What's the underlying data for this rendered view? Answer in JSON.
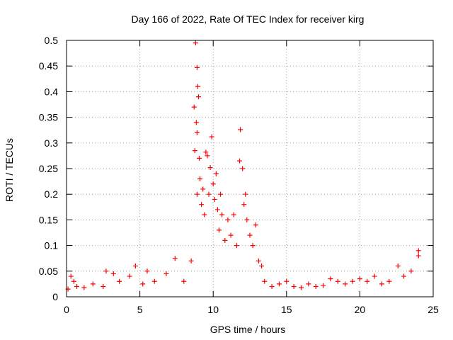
{
  "chart_data": {
    "type": "scatter",
    "title": "Day 166 of 2022, Rate Of TEC Index for receiver kirg",
    "xlabel": "GPS time / hours",
    "ylabel": "ROTI / TECUs",
    "xlim": [
      0,
      25
    ],
    "ylim": [
      0,
      0.5
    ],
    "x_ticks": [
      0,
      5,
      10,
      15,
      20,
      25
    ],
    "y_ticks": [
      0,
      0.05,
      0.1,
      0.15,
      0.2,
      0.25,
      0.3,
      0.35,
      0.4,
      0.45,
      0.5
    ],
    "x_tick_labels": [
      "0",
      "5",
      "10",
      "15",
      "20",
      "25"
    ],
    "y_tick_labels": [
      "0",
      "0.05",
      "0.1",
      "0.15",
      "0.2",
      "0.25",
      "0.3",
      "0.35",
      "0.4",
      "0.45",
      "0.5"
    ],
    "grid": true,
    "legend": "none",
    "marker": "+",
    "color": "#ff0000",
    "series": [
      {
        "points": [
          [
            0.1,
            0.015
          ],
          [
            0.3,
            0.04
          ],
          [
            0.5,
            0.03
          ],
          [
            0.7,
            0.02
          ],
          [
            1.2,
            0.018
          ],
          [
            1.8,
            0.025
          ],
          [
            2.5,
            0.02
          ],
          [
            2.7,
            0.05
          ],
          [
            3.2,
            0.045
          ],
          [
            3.6,
            0.03
          ],
          [
            4.3,
            0.04
          ],
          [
            4.7,
            0.06
          ],
          [
            5.2,
            0.025
          ],
          [
            5.5,
            0.05
          ],
          [
            6.0,
            0.03
          ],
          [
            6.8,
            0.045
          ],
          [
            7.4,
            0.075
          ],
          [
            8.0,
            0.03
          ],
          [
            8.5,
            0.07
          ],
          [
            8.8,
            0.495
          ],
          [
            8.9,
            0.447
          ],
          [
            8.95,
            0.41
          ],
          [
            9.0,
            0.39
          ],
          [
            8.7,
            0.37
          ],
          [
            8.85,
            0.34
          ],
          [
            8.9,
            0.32
          ],
          [
            8.75,
            0.285
          ],
          [
            9.05,
            0.27
          ],
          [
            8.9,
            0.2
          ],
          [
            9.1,
            0.23
          ],
          [
            9.2,
            0.18
          ],
          [
            9.3,
            0.21
          ],
          [
            9.4,
            0.16
          ],
          [
            9.5,
            0.282
          ],
          [
            9.6,
            0.275
          ],
          [
            9.7,
            0.2
          ],
          [
            9.8,
            0.252
          ],
          [
            9.9,
            0.312
          ],
          [
            10.0,
            0.22
          ],
          [
            10.1,
            0.19
          ],
          [
            10.2,
            0.24
          ],
          [
            10.3,
            0.17
          ],
          [
            10.4,
            0.13
          ],
          [
            10.5,
            0.2
          ],
          [
            10.6,
            0.16
          ],
          [
            10.8,
            0.11
          ],
          [
            11.0,
            0.15
          ],
          [
            11.2,
            0.12
          ],
          [
            11.4,
            0.16
          ],
          [
            11.6,
            0.1
          ],
          [
            11.8,
            0.265
          ],
          [
            11.85,
            0.326
          ],
          [
            12.0,
            0.25
          ],
          [
            12.1,
            0.18
          ],
          [
            12.2,
            0.2
          ],
          [
            12.3,
            0.15
          ],
          [
            12.5,
            0.12
          ],
          [
            12.7,
            0.1
          ],
          [
            12.9,
            0.14
          ],
          [
            13.1,
            0.07
          ],
          [
            13.3,
            0.06
          ],
          [
            13.5,
            0.03
          ],
          [
            14.0,
            0.02
          ],
          [
            14.5,
            0.025
          ],
          [
            15.0,
            0.03
          ],
          [
            15.5,
            0.02
          ],
          [
            16.0,
            0.018
          ],
          [
            16.5,
            0.025
          ],
          [
            17.0,
            0.02
          ],
          [
            17.5,
            0.022
          ],
          [
            18.0,
            0.035
          ],
          [
            18.5,
            0.03
          ],
          [
            19.0,
            0.025
          ],
          [
            19.5,
            0.03
          ],
          [
            20.0,
            0.035
          ],
          [
            20.5,
            0.03
          ],
          [
            21.0,
            0.04
          ],
          [
            21.5,
            0.025
          ],
          [
            22.0,
            0.03
          ],
          [
            22.6,
            0.06
          ],
          [
            23.0,
            0.04
          ],
          [
            23.5,
            0.05
          ],
          [
            24.0,
            0.09
          ],
          [
            24.0,
            0.08
          ]
        ]
      }
    ]
  }
}
